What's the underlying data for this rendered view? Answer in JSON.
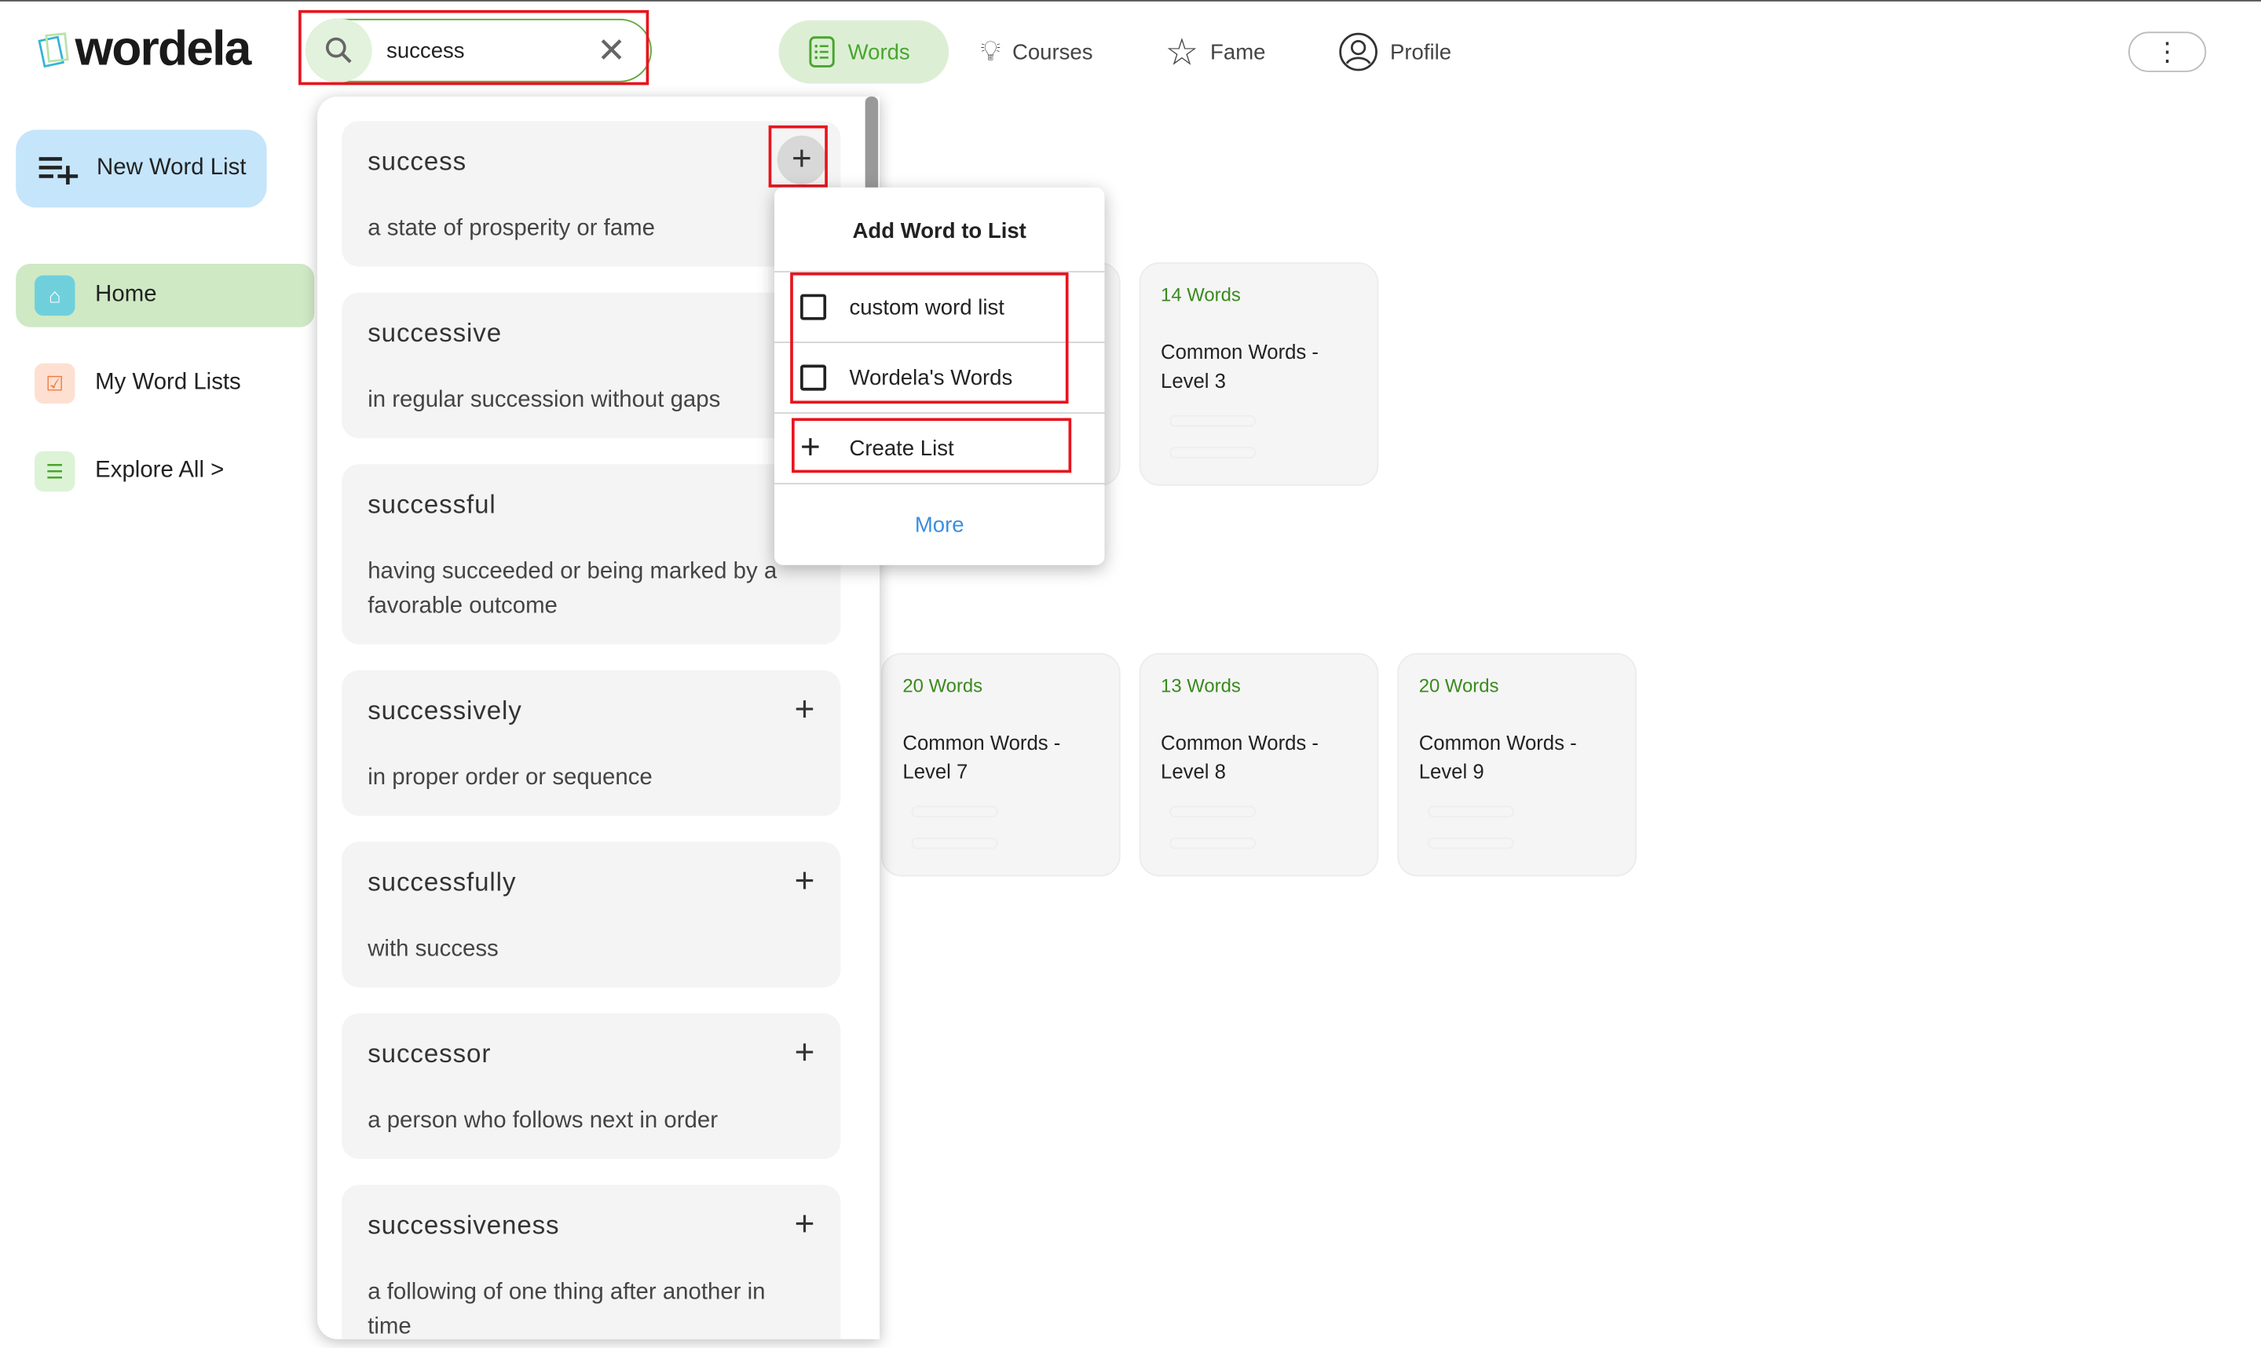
{
  "header": {
    "logo": "wordela",
    "search": {
      "value": "success"
    },
    "nav": [
      {
        "label": "Words",
        "icon": "list-icon",
        "active": true
      },
      {
        "label": "Courses",
        "icon": "lightbulb-icon"
      },
      {
        "label": "Fame",
        "icon": "star-icon"
      },
      {
        "label": "Profile",
        "icon": "user-circle-icon"
      }
    ],
    "menu_icon": "more-vertical-icon"
  },
  "sidebar": {
    "new_list": "New Word List",
    "items": [
      {
        "label": "Home",
        "icon": "home-icon",
        "active": true
      },
      {
        "label": "My Word Lists",
        "icon": "list-check-icon"
      },
      {
        "label": "Explore All >",
        "icon": "list-icon"
      }
    ]
  },
  "cards": [
    {
      "count": "14 Words",
      "title": "Common Words - Level 3"
    },
    {
      "count": "20 Words",
      "title": "Common Words - Level 7"
    },
    {
      "count": "13 Words",
      "title": "Common Words - Level 8"
    },
    {
      "count": "20 Words",
      "title": "Common Words - Level 9"
    }
  ],
  "results": [
    {
      "word": "success",
      "definition": "a state of prosperity or fame"
    },
    {
      "word": "successive",
      "definition": "in regular succession without gaps"
    },
    {
      "word": "successful",
      "definition": "having succeeded or being marked by a favorable outcome"
    },
    {
      "word": "successively",
      "definition": "in proper order or sequence"
    },
    {
      "word": "successfully",
      "definition": "with success"
    },
    {
      "word": "successor",
      "definition": "a person who follows next in order"
    },
    {
      "word": "successiveness",
      "definition": "a following of one thing after another in time"
    }
  ],
  "popup": {
    "title": "Add Word to List",
    "lists": [
      "custom word list",
      "Wordela's Words"
    ],
    "create": "Create List",
    "more": "More"
  },
  "colors": {
    "accent": "#4aa52e",
    "highlight": "#e8141e",
    "link": "#3a8ee0"
  }
}
